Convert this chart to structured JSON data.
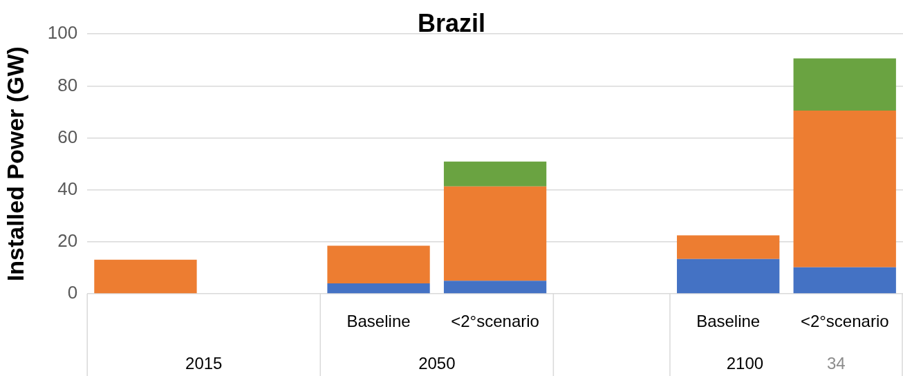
{
  "chart_data": {
    "type": "bar",
    "title": "Brazil",
    "ylabel": "Installed Power (GW)",
    "stacked": true,
    "legend": false,
    "grid": "y",
    "categories": [
      null,
      null,
      "Baseline",
      "<2°scenario",
      null,
      "Baseline",
      "<2°scenario"
    ],
    "series": [
      {
        "color": "#4472c4",
        "values": [
          null,
          null,
          4,
          5,
          null,
          13.4,
          10.2
        ]
      },
      {
        "color": "#ed7d31",
        "values": [
          13.1,
          null,
          14.5,
          36.3,
          null,
          9.1,
          60.3
        ]
      },
      {
        "color": "#6aa341",
        "values": [
          null,
          null,
          null,
          9.6,
          null,
          null,
          20.1
        ]
      }
    ],
    "ylim": [
      0,
      100
    ],
    "yticks": [
      0,
      20,
      40,
      60,
      80,
      100
    ],
    "annotations": [
      "2015",
      "2050",
      "2100",
      "34"
    ]
  }
}
